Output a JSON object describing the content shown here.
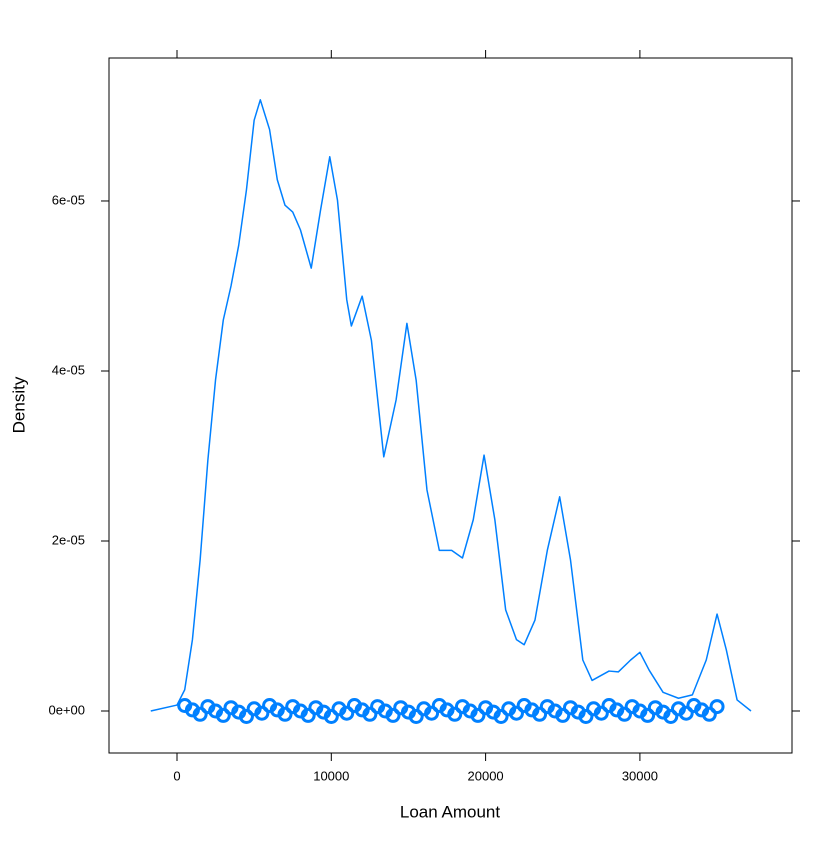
{
  "chart_data": {
    "type": "density",
    "x_label": "Loan Amount",
    "y_label": "Density",
    "xlim": [
      -4407,
      39857
    ],
    "ylim": [
      -4.94e-06,
      7.682e-05
    ],
    "xticks": [
      0,
      10000,
      20000,
      30000
    ],
    "yticks": [
      {
        "value": 0,
        "label": "0e+00"
      },
      {
        "value": 2e-05,
        "label": "2e-05"
      },
      {
        "value": 4e-05,
        "label": "4e-05"
      },
      {
        "value": 6e-05,
        "label": "6e-05"
      }
    ],
    "color": "#0080ff",
    "x": [
      -1700,
      0,
      500,
      1000,
      1500,
      2000,
      2500,
      3000,
      3500,
      4000,
      4500,
      5000,
      5400,
      6000,
      6500,
      7000,
      7500,
      8000,
      8700,
      9300,
      9900,
      10400,
      11000,
      11300,
      12000,
      12600,
      13400,
      14200,
      14900,
      15500,
      16200,
      17000,
      17800,
      18500,
      19200,
      19900,
      20600,
      21300,
      22000,
      22500,
      23200,
      24000,
      24800,
      25500,
      26300,
      26900,
      27500,
      28000,
      28600,
      29400,
      30000,
      30600,
      31500,
      32500,
      33400,
      34300,
      35000,
      35600,
      36300,
      37200
    ],
    "values": [
      0,
      7e-07,
      2.5e-06,
      8.4e-06,
      1.78e-05,
      2.95e-05,
      3.9e-05,
      4.6e-05,
      5e-05,
      5.48e-05,
      6.13e-05,
      6.95e-05,
      7.19e-05,
      6.84e-05,
      6.25e-05,
      5.95e-05,
      5.87e-05,
      5.66e-05,
      5.21e-05,
      5.89e-05,
      6.52e-05,
      6.01e-05,
      4.84e-05,
      4.53e-05,
      4.88e-05,
      4.36e-05,
      2.99e-05,
      3.66e-05,
      4.56e-05,
      3.89e-05,
      2.6e-05,
      1.89e-05,
      1.89e-05,
      1.8e-05,
      2.25e-05,
      3.01e-05,
      2.25e-05,
      1.19e-05,
      8.4e-06,
      7.8e-06,
      1.07e-05,
      1.89e-05,
      2.52e-05,
      1.78e-05,
      6e-06,
      3.6e-06,
      4.2e-06,
      4.7e-06,
      4.6e-06,
      6e-06,
      6.9e-06,
      4.8e-06,
      2.2e-06,
      1.5e-06,
      1.9e-06,
      6e-06,
      1.14e-05,
      7.2e-06,
      1.3e-06,
      0
    ],
    "points_x": [
      500,
      1000,
      1500,
      2000,
      2500,
      3000,
      3500,
      4000,
      4500,
      5000,
      5500,
      6000,
      6500,
      7000,
      7500,
      8000,
      8500,
      9000,
      9500,
      10000,
      10500,
      11000,
      11500,
      12000,
      12500,
      13000,
      13500,
      14000,
      14500,
      15000,
      15500,
      16000,
      16500,
      17000,
      17500,
      18000,
      18500,
      19000,
      19500,
      20000,
      20500,
      21000,
      21500,
      22000,
      22500,
      23000,
      23500,
      24000,
      24500,
      25000,
      25500,
      26000,
      26500,
      27000,
      27500,
      28000,
      28500,
      29000,
      29500,
      30000,
      30500,
      31000,
      31500,
      32000,
      32500,
      33000,
      33500,
      34000,
      34500,
      35000
    ]
  }
}
